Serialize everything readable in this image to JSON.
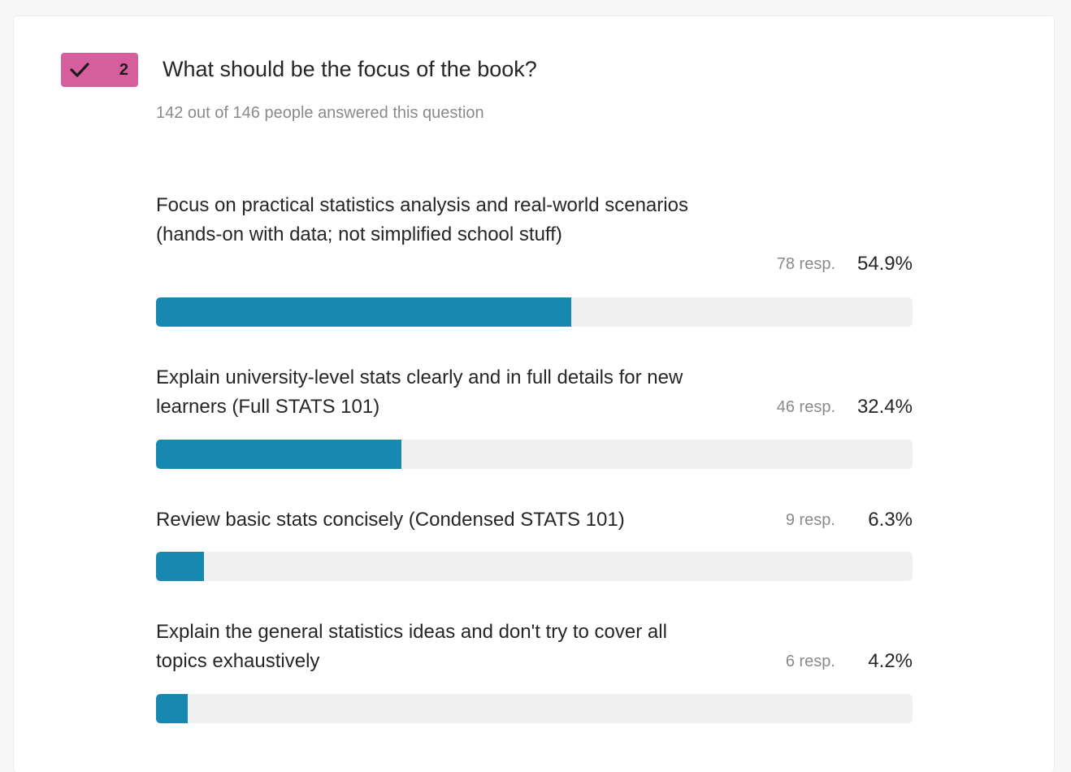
{
  "question": {
    "number": "2",
    "title": "What should be the focus of the book?",
    "answered_text": "142 out of 146 people answered this question"
  },
  "colors": {
    "badge": "#d65e9c",
    "bar_fill": "#1789b0",
    "bar_track": "#f0f0f0"
  },
  "icons": {
    "badge": "check-icon"
  },
  "chart_data": {
    "type": "bar",
    "orientation": "horizontal",
    "categories": [
      "Focus on practical statistics analysis and real-world scenarios (hands-on with data; not simplified school stuff)",
      "Explain university-level stats clearly and in full details for new learners (Full STATS 101)",
      "Review basic stats concisely (Condensed STATS 101)",
      "Explain the general statistics ideas and don't try to cover all topics exhaustively"
    ],
    "responses": [
      "78 resp.",
      "46 resp.",
      "9 resp.",
      "6 resp."
    ],
    "percent_labels": [
      "54.9%",
      "32.4%",
      "6.3%",
      "4.2%"
    ],
    "values": [
      54.9,
      32.4,
      6.3,
      4.2
    ],
    "xlim": [
      0,
      100
    ]
  }
}
